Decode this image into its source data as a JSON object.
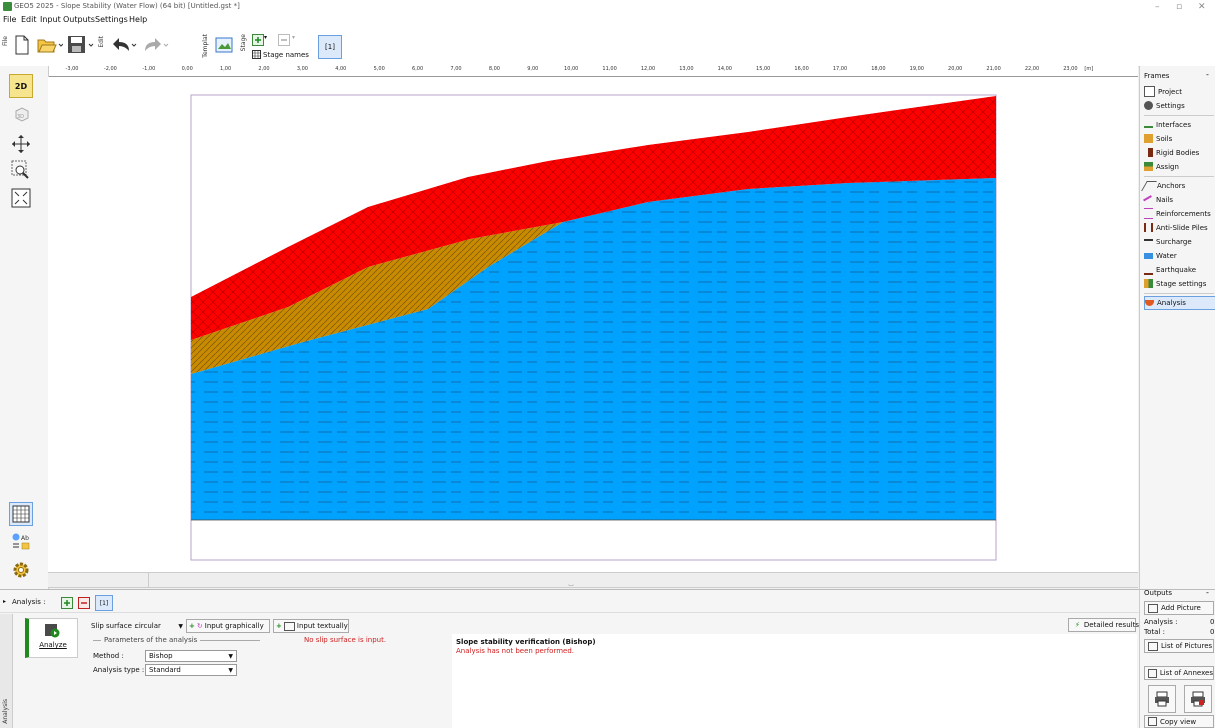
{
  "window": {
    "title": "GEO5 2025 - Slope Stability (Water Flow) (64 bit) [Untitled.gst *]",
    "minimize": "–",
    "maximize": "▫",
    "close": "✕"
  },
  "menu": [
    "File",
    "Edit",
    "Input",
    "Outputs",
    "Settings",
    "Help"
  ],
  "toolbar": {
    "file_tab": "File",
    "edit_tab": "Edit",
    "template_tab": "Templat",
    "stage_tab": "Stage",
    "stage_names": "Stage names",
    "stage_current": "[1]"
  },
  "ruler": {
    "unit": "[m]",
    "ticks": [
      "-3,00",
      "-2,00",
      "-1,00",
      "0,00",
      "1,00",
      "2,00",
      "3,00",
      "4,00",
      "5,00",
      "6,00",
      "7,00",
      "8,00",
      "9,00",
      "10,00",
      "11,00",
      "12,00",
      "13,00",
      "14,00",
      "15,00",
      "16,00",
      "17,00",
      "18,00",
      "19,00",
      "20,00",
      "21,00",
      "22,00",
      "23,00"
    ]
  },
  "left_toolbar": {
    "view2d": "2D",
    "view3d": "3D"
  },
  "frames": {
    "header": "Frames",
    "items": [
      "Project",
      "Settings",
      "Interfaces",
      "Soils",
      "Rigid Bodies",
      "Assign",
      "Anchors",
      "Nails",
      "Reinforcements",
      "Anti-Slide Piles",
      "Surcharge",
      "Water",
      "Earthquake",
      "Stage settings",
      "Analysis"
    ],
    "active": "Analysis"
  },
  "colors": {
    "soil_top": "#ff0000",
    "soil_mid": "#c88a00",
    "soil_water": "#00a2ff",
    "accent": "#1e8a1e"
  },
  "analysis": {
    "header_label": "Analysis :",
    "stage": "[1]",
    "analyze_label": "Analyze",
    "slip_surface_label": "Slip surface :",
    "slip_surface_value": "circular",
    "input_graphically": "Input graphically",
    "input_textually": "Input textually",
    "params_header": "Parameters of the analysis",
    "warning": "No slip surface is input.",
    "method_label": "Method :",
    "method_value": "Bishop",
    "analysis_type_label": "Analysis type :",
    "analysis_type_value": "Standard",
    "detailed_results": "Detailed results",
    "result_title": "Slope stability verification (Bishop)",
    "result_status": "Analysis has not been performed.",
    "side_tab": "Analysis"
  },
  "outputs": {
    "header": "Outputs",
    "add_picture": "Add Picture",
    "analysis_label": "Analysis :",
    "analysis_count": "0",
    "total_label": "Total :",
    "total_count": "0",
    "list_pictures": "List of Pictures",
    "list_annexes": "List of Annexes",
    "copy_view": "Copy view"
  }
}
